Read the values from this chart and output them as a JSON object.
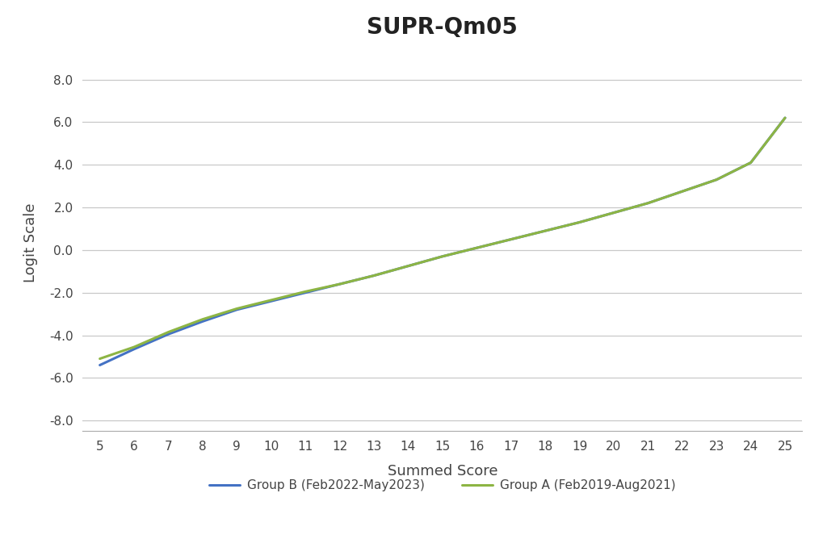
{
  "title": "SUPR-Qm05",
  "xlabel": "Summed Score",
  "ylabel": "Logit Scale",
  "x_values": [
    5,
    6,
    7,
    8,
    9,
    10,
    11,
    12,
    13,
    14,
    15,
    16,
    17,
    18,
    19,
    20,
    21,
    22,
    23,
    24,
    25
  ],
  "group_a_y": [
    -5.1,
    -4.55,
    -3.85,
    -3.25,
    -2.75,
    -2.35,
    -1.95,
    -1.6,
    -1.2,
    -0.75,
    -0.3,
    0.1,
    0.5,
    0.9,
    1.3,
    1.75,
    2.2,
    2.75,
    3.3,
    4.1,
    6.2
  ],
  "group_b_y": [
    -5.4,
    -4.65,
    -3.95,
    -3.35,
    -2.8,
    -2.4,
    -2.0,
    -1.6,
    -1.2,
    -0.75,
    -0.3,
    0.1,
    0.5,
    0.9,
    1.3,
    1.75,
    2.2,
    2.75,
    3.3,
    4.1,
    6.2
  ],
  "group_a_color": "#8db544",
  "group_b_color": "#4472c4",
  "group_a_label": "Group A (Feb2019-Aug2021)",
  "group_b_label": "Group B (Feb2022-May2023)",
  "ylim": [
    -8.5,
    9.2
  ],
  "yticks": [
    -8.0,
    -6.0,
    -4.0,
    -2.0,
    0.0,
    2.0,
    4.0,
    6.0,
    8.0
  ],
  "xlim": [
    4.5,
    25.5
  ],
  "xticks": [
    5,
    6,
    7,
    8,
    9,
    10,
    11,
    12,
    13,
    14,
    15,
    16,
    17,
    18,
    19,
    20,
    21,
    22,
    23,
    24,
    25
  ],
  "background_color": "#ffffff",
  "grid_color": "#c8c8c8",
  "line_width": 2.2,
  "title_fontsize": 20,
  "axis_label_fontsize": 13,
  "tick_fontsize": 11,
  "legend_fontsize": 11,
  "figsize": [
    10.24,
    6.68
  ],
  "dpi": 100
}
